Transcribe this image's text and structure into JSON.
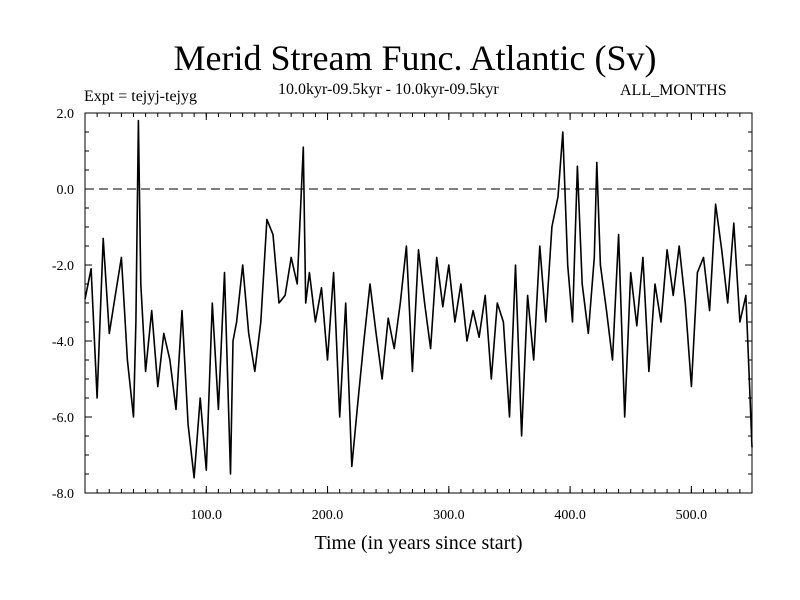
{
  "chart_data": {
    "type": "line",
    "title": "Merid Stream Func. Atlantic (Sv)",
    "subtitle_left": "Expt = tejyj-tejyg",
    "subtitle_center": "10.0kyr-09.5kyr - 10.0kyr-09.5kyr",
    "subtitle_right": "ALL_MONTHS",
    "xlabel": "Time (in years since start)",
    "ylabel": "",
    "xlim": [
      0,
      550
    ],
    "ylim": [
      -8.0,
      2.0
    ],
    "xticks": [
      100.0,
      200.0,
      300.0,
      400.0,
      500.0
    ],
    "xtick_labels": [
      "100.0",
      "200.0",
      "300.0",
      "400.0",
      "500.0"
    ],
    "yticks": [
      2.0,
      0.0,
      -2.0,
      -4.0,
      -6.0,
      -8.0
    ],
    "ytick_labels": [
      "2.0",
      "0.0",
      "-2.0",
      "-4.0",
      "-6.0",
      "-8.0"
    ],
    "reference_line": {
      "y": 0.0,
      "style": "dashed"
    },
    "series": [
      {
        "name": "Merid Stream Func. Atlantic",
        "x": [
          0,
          5,
          10,
          15,
          20,
          25,
          30,
          35,
          40,
          42,
          44,
          46,
          50,
          55,
          60,
          65,
          70,
          75,
          80,
          85,
          90,
          95,
          100,
          105,
          110,
          115,
          120,
          122,
          125,
          130,
          135,
          140,
          145,
          150,
          155,
          160,
          165,
          170,
          175,
          180,
          182,
          185,
          190,
          195,
          200,
          205,
          210,
          215,
          220,
          225,
          230,
          235,
          240,
          245,
          250,
          255,
          260,
          265,
          270,
          275,
          280,
          285,
          290,
          295,
          300,
          305,
          310,
          315,
          320,
          325,
          330,
          335,
          340,
          345,
          350,
          355,
          360,
          365,
          370,
          375,
          380,
          385,
          390,
          394,
          398,
          402,
          406,
          410,
          415,
          420,
          422,
          425,
          430,
          435,
          440,
          445,
          450,
          455,
          460,
          465,
          470,
          475,
          480,
          485,
          490,
          495,
          500,
          505,
          510,
          515,
          520,
          525,
          530,
          535,
          540,
          545,
          548,
          550
        ],
        "values": [
          -2.9,
          -2.1,
          -5.5,
          -1.3,
          -3.8,
          -2.8,
          -1.8,
          -4.5,
          -6.0,
          -3.5,
          1.8,
          -2.5,
          -4.8,
          -3.2,
          -5.2,
          -3.8,
          -4.5,
          -5.8,
          -3.2,
          -6.2,
          -7.6,
          -5.5,
          -7.4,
          -3.0,
          -5.8,
          -2.2,
          -7.5,
          -4.0,
          -3.5,
          -2.0,
          -3.8,
          -4.8,
          -3.5,
          -0.8,
          -1.2,
          -3.0,
          -2.8,
          -1.8,
          -2.5,
          1.1,
          -3.0,
          -2.2,
          -3.5,
          -2.6,
          -4.5,
          -2.2,
          -6.0,
          -3.0,
          -7.3,
          -5.6,
          -4.0,
          -2.5,
          -3.8,
          -5.0,
          -3.4,
          -4.2,
          -3.0,
          -1.5,
          -4.8,
          -1.6,
          -3.0,
          -4.2,
          -1.8,
          -3.1,
          -2.0,
          -3.5,
          -2.5,
          -4.0,
          -3.2,
          -3.9,
          -2.8,
          -5.0,
          -3.0,
          -3.5,
          -6.0,
          -2.0,
          -6.5,
          -2.8,
          -4.5,
          -1.5,
          -3.5,
          -1.0,
          -0.2,
          1.5,
          -2.0,
          -3.5,
          0.6,
          -2.5,
          -3.8,
          -1.8,
          0.7,
          -2.0,
          -3.2,
          -4.5,
          -1.2,
          -6.0,
          -2.2,
          -3.6,
          -1.8,
          -4.8,
          -2.5,
          -3.5,
          -1.6,
          -2.8,
          -1.5,
          -3.0,
          -5.2,
          -2.2,
          -1.8,
          -3.2,
          -0.4,
          -1.6,
          -3.0,
          -0.9,
          -3.5,
          -2.8,
          -5.2,
          -6.8
        ]
      }
    ]
  }
}
